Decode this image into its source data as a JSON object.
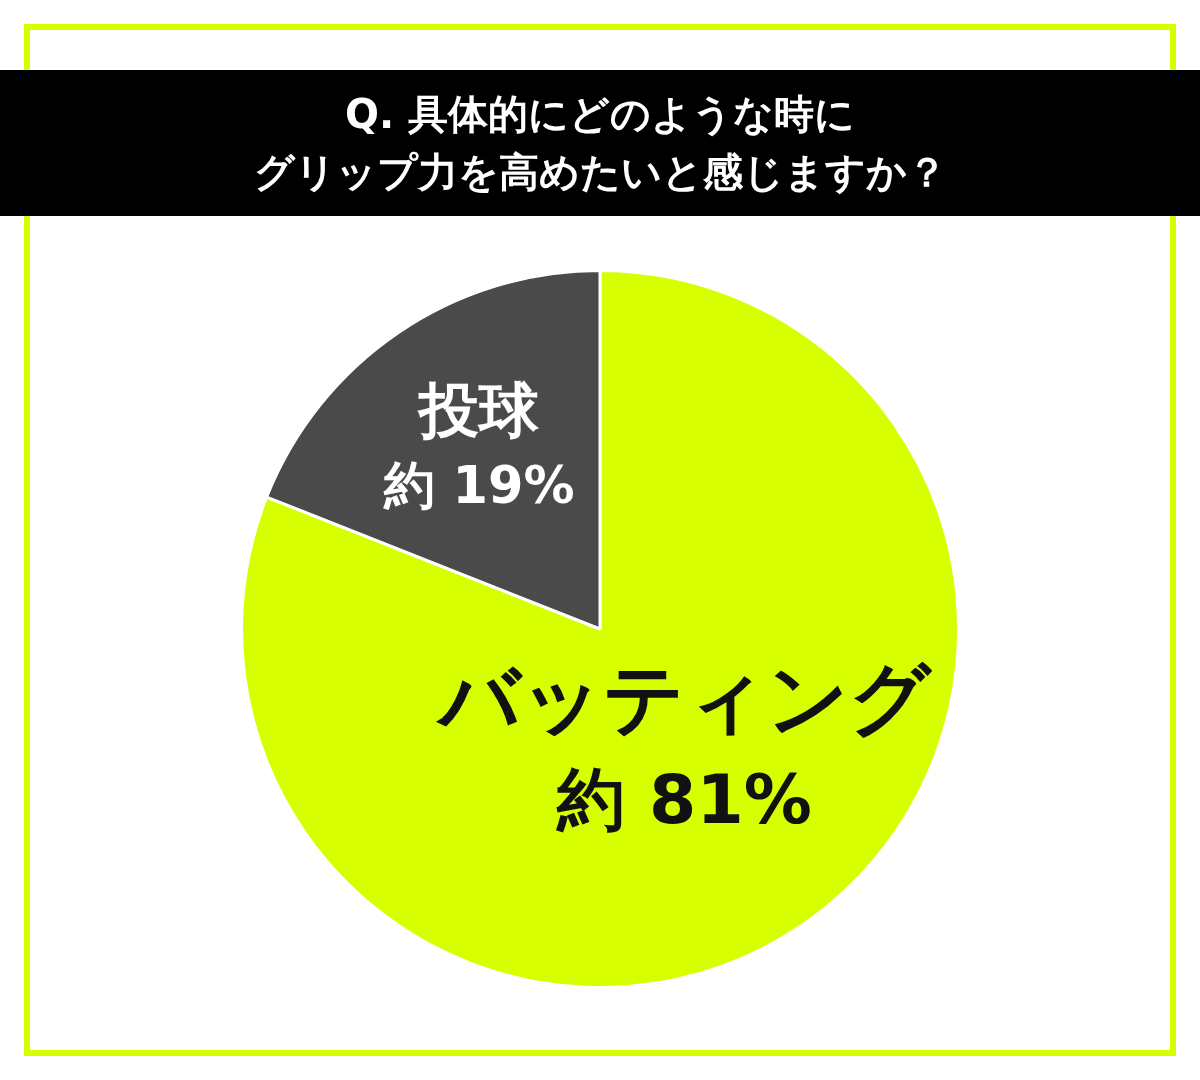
{
  "chart_data": {
    "type": "pie",
    "title": "Q. 具体的にどのような時にグリップ力を高めたいと感じますか？",
    "categories": [
      "バッティング",
      "投球"
    ],
    "values": [
      81,
      19
    ],
    "colors": [
      "#d7ff00",
      "#4a4a4a"
    ],
    "value_labels": [
      "約 81%",
      "約 19%"
    ]
  }
}
